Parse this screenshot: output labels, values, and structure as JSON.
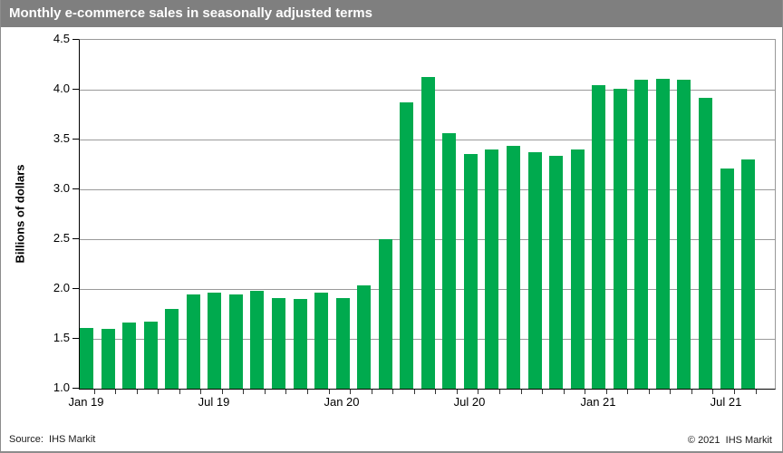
{
  "header": {
    "title": "Monthly e-commerce sales in seasonally adjusted terms",
    "bg_color": "#7f7f7f"
  },
  "footer": {
    "source": "Source:  IHS Markit",
    "copyright": "© 2021  IHS Markit"
  },
  "chart_data": {
    "type": "bar",
    "title": "Monthly e-commerce sales in seasonally adjusted terms",
    "xlabel": "",
    "ylabel": "Billions of dollars",
    "ylim": [
      1.0,
      4.5
    ],
    "yticks": [
      1.0,
      1.5,
      2.0,
      2.5,
      3.0,
      3.5,
      4.0,
      4.5
    ],
    "grid": true,
    "legend_position": "none",
    "bar_color": "#00AA4E",
    "gridline_color": "#9a9a9a",
    "categories": [
      "Jan 19",
      "Feb 19",
      "Mar 19",
      "Apr 19",
      "May 19",
      "Jun 19",
      "Jul 19",
      "Aug 19",
      "Sep 19",
      "Oct 19",
      "Nov 19",
      "Dec 19",
      "Jan 20",
      "Feb 20",
      "Mar 20",
      "Apr 20",
      "May 20",
      "Jun 20",
      "Jul 20",
      "Aug 20",
      "Sep 20",
      "Oct 20",
      "Nov 20",
      "Dec 20",
      "Jan 21",
      "Feb 21",
      "Mar 21",
      "Apr 21",
      "May 21",
      "Jun 21",
      "Jul 21",
      "Aug 21"
    ],
    "values": [
      1.61,
      1.6,
      1.66,
      1.67,
      1.8,
      1.95,
      1.96,
      1.95,
      1.98,
      1.91,
      1.9,
      1.96,
      1.91,
      2.04,
      2.5,
      3.87,
      4.13,
      3.56,
      3.35,
      3.4,
      3.44,
      3.37,
      3.34,
      3.4,
      4.05,
      4.01,
      4.1,
      4.11,
      4.1,
      3.92,
      3.21,
      3.3
    ],
    "xtick_labels": [
      {
        "index": 0,
        "label": "Jan 19"
      },
      {
        "index": 6,
        "label": "Jul 19"
      },
      {
        "index": 12,
        "label": "Jan 20"
      },
      {
        "index": 18,
        "label": "Jul 20"
      },
      {
        "index": 24,
        "label": "Jan 21"
      },
      {
        "index": 30,
        "label": "Jul 21"
      }
    ]
  }
}
